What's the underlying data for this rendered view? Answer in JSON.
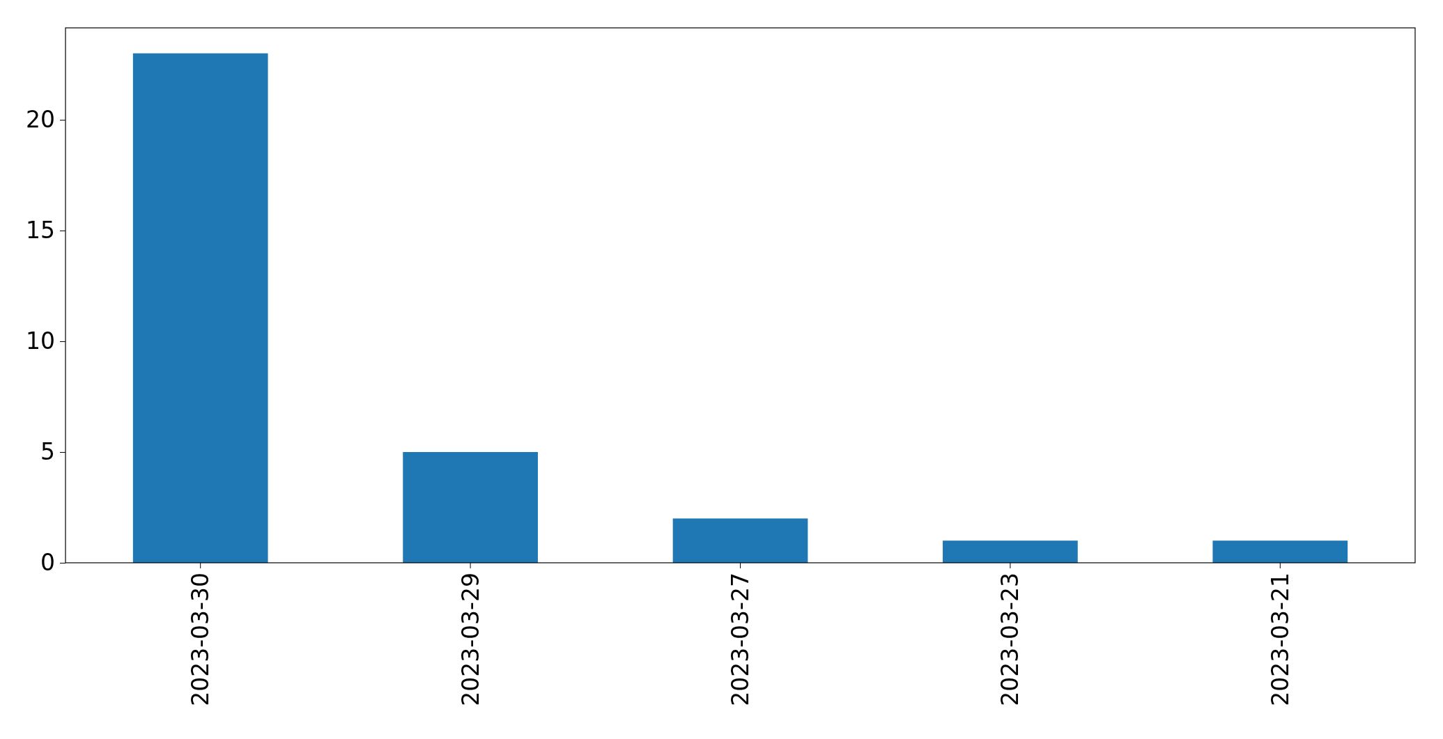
{
  "chart_data": {
    "type": "bar",
    "categories": [
      "2023-03-30",
      "2023-03-29",
      "2023-03-27",
      "2023-03-23",
      "2023-03-21"
    ],
    "values": [
      23,
      5,
      2,
      1,
      1
    ],
    "color": "#1f77b4",
    "ylim": [
      0,
      24.15
    ],
    "yticks": [
      0,
      5,
      10,
      15,
      20
    ],
    "grid": false
  }
}
